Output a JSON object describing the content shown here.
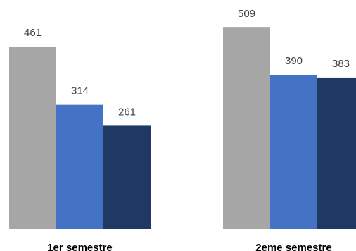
{
  "chart_data": {
    "type": "bar",
    "categories": [
      "1er semestre",
      "2eme semestre"
    ],
    "series": [
      {
        "values": [
          461,
          509
        ],
        "color": "#a6a6a6"
      },
      {
        "values": [
          314,
          390
        ],
        "color": "#4472c4"
      },
      {
        "values": [
          261,
          383
        ],
        "color": "#203864"
      }
    ],
    "title": "",
    "xlabel": "",
    "ylabel": "",
    "ylim": [
      0,
      552
    ],
    "grid": false,
    "legend": "none",
    "data_labels": true
  }
}
